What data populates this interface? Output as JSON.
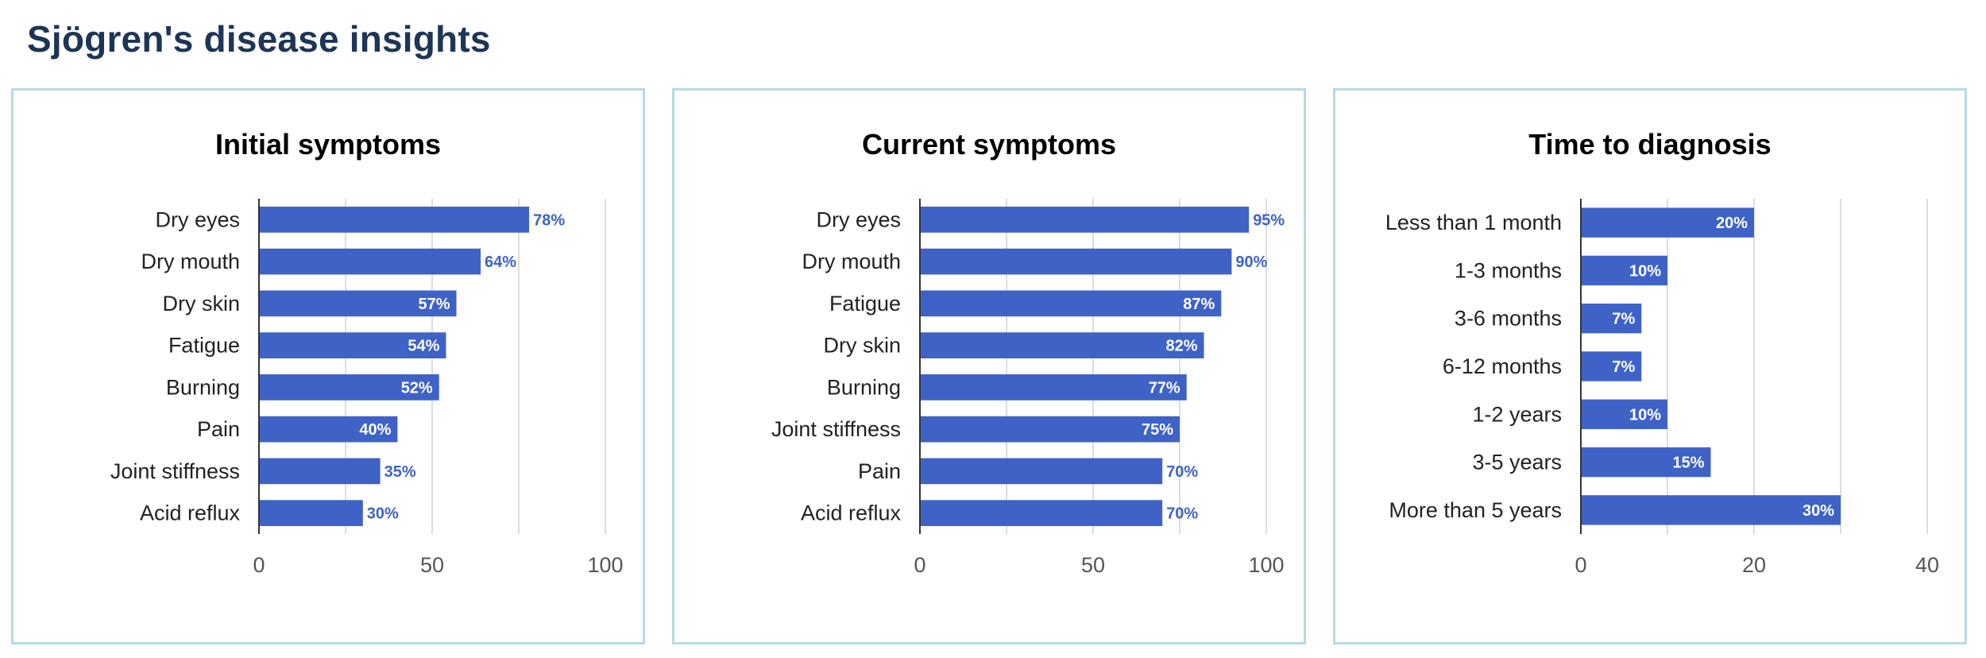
{
  "page": {
    "title": "Sjögren's disease insights"
  },
  "colors": {
    "bar": "#3f62c6",
    "panel_border": "#b7d9e6",
    "title": "#1d3557"
  },
  "chart_data": [
    {
      "type": "bar",
      "orientation": "horizontal",
      "title": "Initial symptoms",
      "xlabel": "",
      "ylabel": "",
      "xlim": [
        0,
        100
      ],
      "ticks": [
        0,
        50,
        100
      ],
      "grid": true,
      "categories": [
        "Dry eyes",
        "Dry mouth",
        "Dry skin",
        "Fatigue",
        "Burning",
        "Pain",
        "Joint stiffness",
        "Acid reflux"
      ],
      "values": [
        78,
        64,
        57,
        54,
        52,
        40,
        35,
        30
      ],
      "labels": [
        "78%",
        "64%",
        "57%",
        "54%",
        "52%",
        "40%",
        "35%",
        "30%"
      ]
    },
    {
      "type": "bar",
      "orientation": "horizontal",
      "title": "Current symptoms",
      "xlabel": "",
      "ylabel": "",
      "xlim": [
        0,
        100
      ],
      "ticks": [
        0,
        50,
        100
      ],
      "grid": true,
      "categories": [
        "Dry eyes",
        "Dry mouth",
        "Fatigue",
        "Dry skin",
        "Burning",
        "Joint stiffness",
        "Pain",
        "Acid reflux"
      ],
      "values": [
        95,
        90,
        87,
        82,
        77,
        75,
        70,
        70
      ],
      "labels": [
        "95%",
        "90%",
        "87%",
        "82%",
        "77%",
        "75%",
        "70%",
        "70%"
      ]
    },
    {
      "type": "bar",
      "orientation": "horizontal",
      "title": "Time to diagnosis",
      "xlabel": "",
      "ylabel": "",
      "xlim": [
        0,
        40
      ],
      "ticks": [
        0,
        20,
        40
      ],
      "grid": true,
      "categories": [
        "Less than 1 month",
        "1-3 months",
        "3-6 months",
        "6-12 months",
        "1-2 years",
        "3-5 years",
        "More than 5 years"
      ],
      "values": [
        20,
        10,
        7,
        7,
        10,
        15,
        30
      ],
      "labels": [
        "20%",
        "10%",
        "7%",
        "7%",
        "10%",
        "15%",
        "30%"
      ]
    }
  ]
}
